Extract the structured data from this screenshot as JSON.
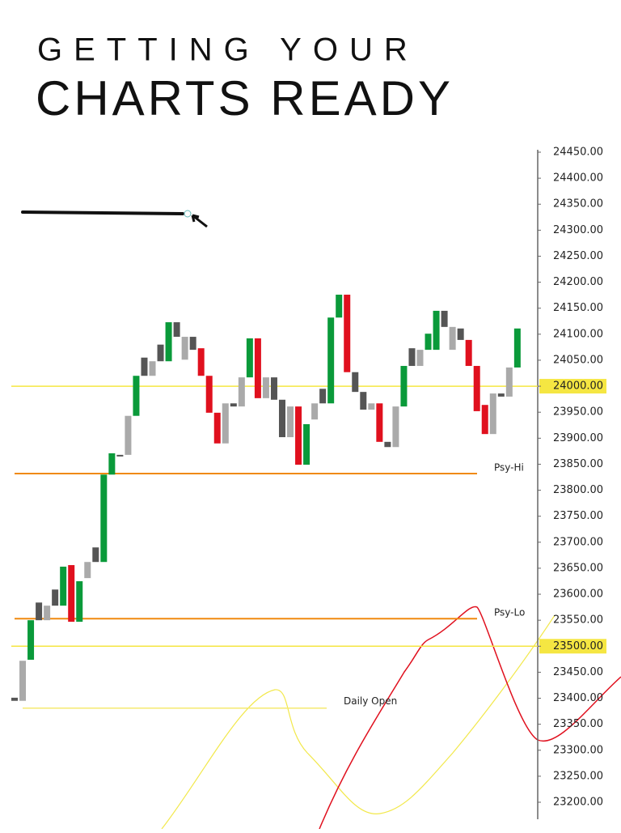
{
  "header": {
    "lines": [
      "GETTING YOUR",
      "CHARTS READY"
    ]
  },
  "chart_data": {
    "type": "candlestick",
    "open": [
      23401,
      23395,
      23474,
      23584,
      23550,
      23609,
      23578,
      23656,
      23547,
      23631,
      23690,
      23662,
      23830,
      23868,
      23868,
      23943,
      24055,
      24020,
      24080,
      24048,
      24123,
      24051,
      24095,
      24073,
      24020,
      23949,
      23890,
      23967,
      23961,
      24017,
      24092,
      23977,
      24017,
      23974,
      23902,
      23961,
      23849,
      23936,
      23995,
      23967,
      24132,
      24176,
      24027,
      23989,
      23955,
      23967,
      23893,
      23883,
      23961,
      24073,
      24039,
      24070,
      24070,
      24145,
      24070,
      24111,
      24089,
      24039,
      23964,
      23908,
      23986,
      23980,
      24036
    ],
    "close": [
      23395,
      23472,
      23550,
      23550,
      23578,
      23578,
      23653,
      23547,
      23625,
      23662,
      23662,
      23830,
      23871,
      23865,
      23943,
      24020,
      24020,
      24048,
      24048,
      24123,
      24095,
      24095,
      24070,
      24020,
      23949,
      23890,
      23967,
      23961,
      24017,
      24092,
      23977,
      24017,
      23974,
      23902,
      23961,
      23849,
      23927,
      23967,
      23967,
      24132,
      24176,
      24027,
      23989,
      23955,
      23967,
      23893,
      23883,
      23961,
      24039,
      24039,
      24070,
      24101,
      24145,
      24114,
      24114,
      24089,
      24039,
      23952,
      23908,
      23986,
      23980,
      24036,
      24111
    ],
    "colors": [
      "#555555",
      "#aaaaaa",
      "#0a9a3a",
      "#555555",
      "#aaaaaa",
      "#555555",
      "#0a9a3a",
      "#e0101e",
      "#0a9a3a",
      "#aaaaaa",
      "#555555",
      "#0a9a3a",
      "#0a9a3a",
      "#555555",
      "#aaaaaa",
      "#0a9a3a",
      "#555555",
      "#aaaaaa",
      "#555555",
      "#0a9a3a",
      "#555555",
      "#aaaaaa",
      "#555555",
      "#e0101e",
      "#e0101e",
      "#e0101e",
      "#aaaaaa",
      "#555555",
      "#aaaaaa",
      "#0a9a3a",
      "#e0101e",
      "#aaaaaa",
      "#555555",
      "#555555",
      "#aaaaaa",
      "#e0101e",
      "#0a9a3a",
      "#aaaaaa",
      "#555555",
      "#0a9a3a",
      "#0a9a3a",
      "#e0101e",
      "#555555",
      "#555555",
      "#aaaaaa",
      "#e0101e",
      "#555555",
      "#aaaaaa",
      "#0a9a3a",
      "#555555",
      "#aaaaaa",
      "#0a9a3a",
      "#0a9a3a",
      "#555555",
      "#aaaaaa",
      "#555555",
      "#e0101e",
      "#e0101e",
      "#e0101e",
      "#aaaaaa",
      "#555555",
      "#aaaaaa",
      "#0a9a3a"
    ],
    "levels": [
      {
        "value": 24000,
        "color": "#f5e642",
        "axis_highlight": true
      },
      {
        "value": 23832,
        "label": "Psy-Hi",
        "color": "#f08a10"
      },
      {
        "value": 23553,
        "label": "Psy-Lo",
        "color": "#f08a10"
      },
      {
        "value": 23500,
        "color": "#f5e642",
        "axis_highlight": true
      },
      {
        "value": 23381,
        "label": "Daily Open",
        "color": "#f5ea70"
      }
    ],
    "ylim": [
      23200,
      24450
    ],
    "yticks": [
      {
        "value": 24450,
        "label": "24450.00"
      },
      {
        "value": 24400,
        "label": "24400.00"
      },
      {
        "value": 24350,
        "label": "24350.00"
      },
      {
        "value": 24300,
        "label": "24300.00"
      },
      {
        "value": 24250,
        "label": "24250.00"
      },
      {
        "value": 24200,
        "label": "24200.00"
      },
      {
        "value": 24150,
        "label": "24150.00"
      },
      {
        "value": 24100,
        "label": "24100.00"
      },
      {
        "value": 24050,
        "label": "24050.00"
      },
      {
        "value": 24000,
        "label": "24000.00"
      },
      {
        "value": 23950,
        "label": "23950.00"
      },
      {
        "value": 23900,
        "label": "23900.00"
      },
      {
        "value": 23850,
        "label": "23850.00"
      },
      {
        "value": 23800,
        "label": "23800.00"
      },
      {
        "value": 23750,
        "label": "23750.00"
      },
      {
        "value": 23700,
        "label": "23700.00"
      },
      {
        "value": 23650,
        "label": "23650.00"
      },
      {
        "value": 23600,
        "label": "23600.00"
      },
      {
        "value": 23550,
        "label": "23550.00"
      },
      {
        "value": 23500,
        "label": "23500.00"
      },
      {
        "value": 23450,
        "label": "23450.00"
      },
      {
        "value": 23400,
        "label": "23400.00"
      },
      {
        "value": 23350,
        "label": "23350.00"
      },
      {
        "value": 23300,
        "label": "23300.00"
      },
      {
        "value": 23250,
        "label": "23250.00"
      },
      {
        "value": 23200,
        "label": "23200.00"
      }
    ]
  }
}
